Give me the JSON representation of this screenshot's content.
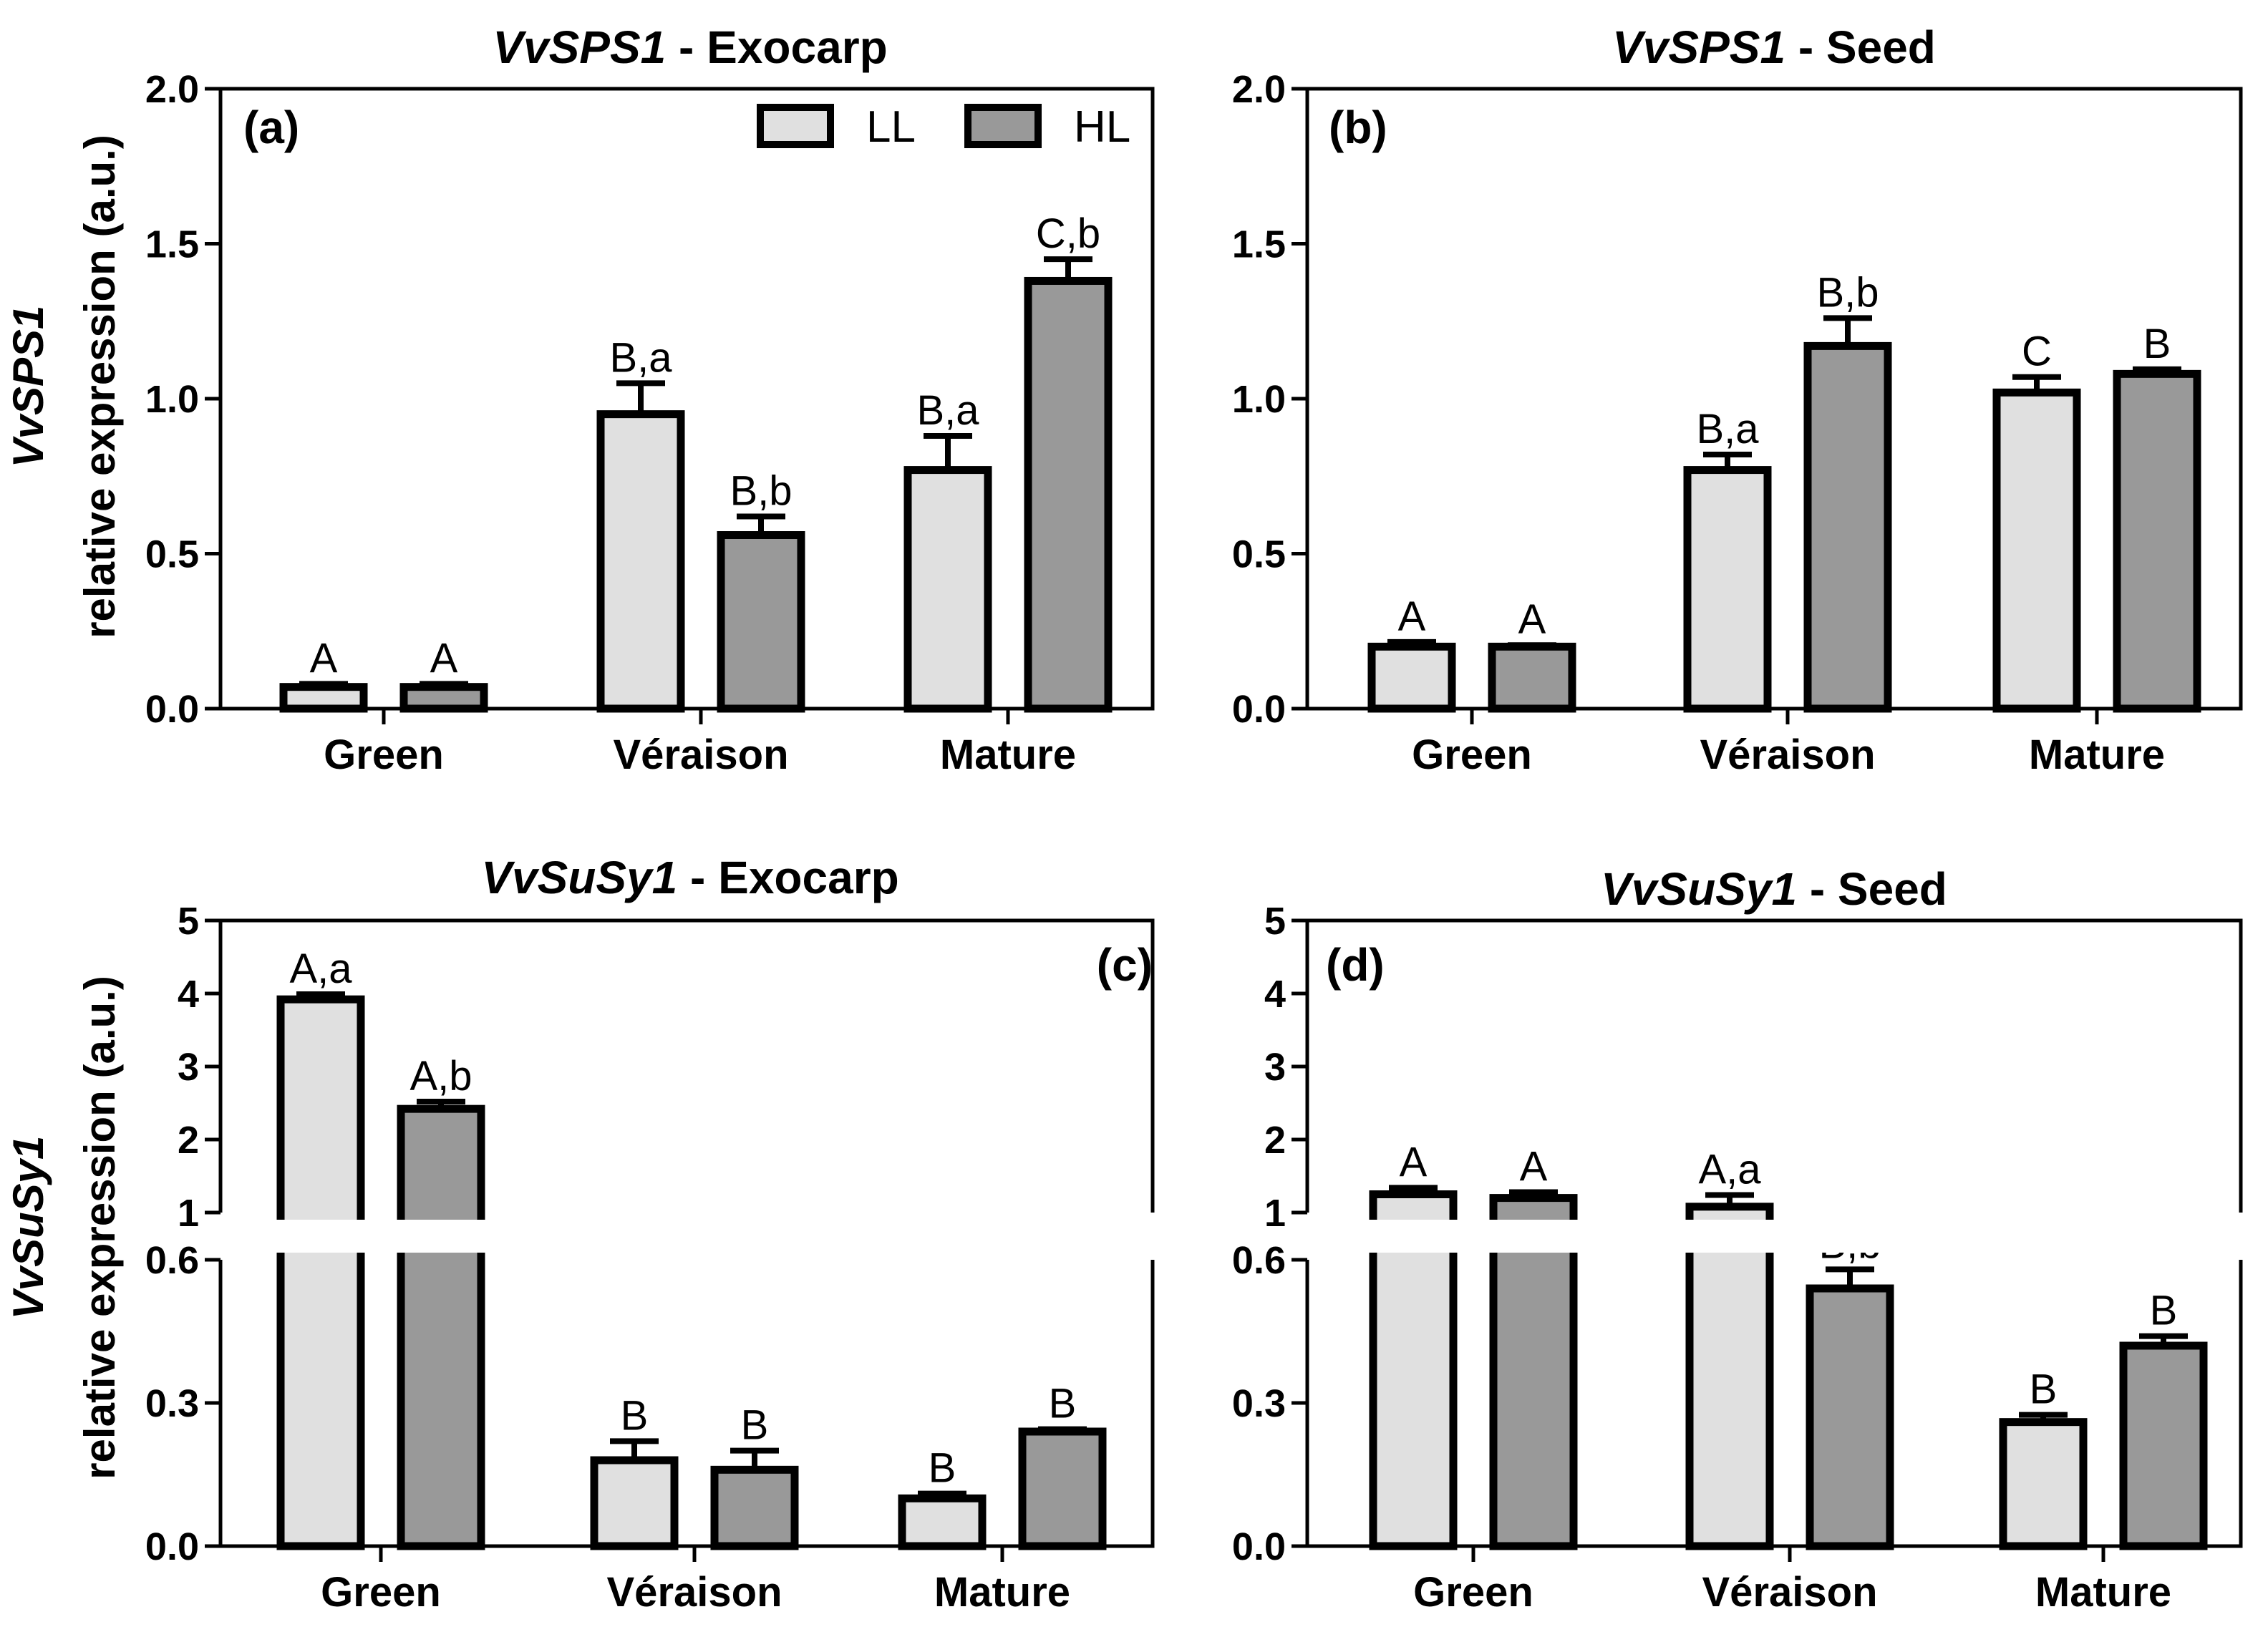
{
  "colors": {
    "LL": "#e0e0e0",
    "HL": "#999999",
    "stroke": "#000000"
  },
  "legend": {
    "LL": "LL",
    "HL": "HL"
  },
  "ylabels": {
    "top": {
      "gene": "VvSPS1",
      "text": "relative expression (a.u.)"
    },
    "bottom": {
      "gene": "VvSuSy1",
      "text": "relative expression (a.u.)"
    }
  },
  "chart_data": [
    {
      "type": "bar",
      "panel": "(a)",
      "title_gene": "VvSPS1",
      "title_sep": " - ",
      "title_tissue": "Exocarp",
      "categories": [
        "Green",
        "Véraison",
        "Mature"
      ],
      "ylim": [
        0,
        2.0
      ],
      "yticks": [
        "0.0",
        "0.5",
        "1.0",
        "1.5",
        "2.0"
      ],
      "series": [
        {
          "name": "LL",
          "values": [
            0.07,
            0.95,
            0.77
          ],
          "errors": [
            0.01,
            0.1,
            0.11
          ],
          "labels": [
            "A",
            "B,a",
            "B,a"
          ]
        },
        {
          "name": "HL",
          "values": [
            0.07,
            0.56,
            1.38
          ],
          "errors": [
            0.01,
            0.06,
            0.07
          ],
          "labels": [
            "A",
            "B,b",
            "C,b"
          ]
        }
      ]
    },
    {
      "type": "bar",
      "panel": "(b)",
      "title_gene": "VvSPS1",
      "title_sep": " - ",
      "title_tissue": "Seed",
      "categories": [
        "Green",
        "Véraison",
        "Mature"
      ],
      "ylim": [
        0,
        2.0
      ],
      "yticks": [
        "0.0",
        "0.5",
        "1.0",
        "1.5",
        "2.0"
      ],
      "series": [
        {
          "name": "LL",
          "values": [
            0.2,
            0.77,
            1.02
          ],
          "errors": [
            0.015,
            0.05,
            0.05
          ],
          "labels": [
            "A",
            "B,a",
            "C"
          ]
        },
        {
          "name": "HL",
          "values": [
            0.2,
            1.17,
            1.08
          ],
          "errors": [
            0.005,
            0.09,
            0.015
          ],
          "labels": [
            "A",
            "B,b",
            "B"
          ]
        }
      ]
    },
    {
      "type": "bar",
      "panel": "(c)",
      "title_gene": "VvSuSy1",
      "title_sep": " - ",
      "title_tissue": "Exocarp",
      "categories": [
        "Green",
        "Véraison",
        "Mature"
      ],
      "axis_break": {
        "lower": [
          0,
          0.6
        ],
        "upper": [
          1,
          5
        ]
      },
      "yticks_lower": [
        "0.0",
        "0.3",
        "0.6"
      ],
      "yticks_upper": [
        "1",
        "2",
        "3",
        "4",
        "5"
      ],
      "series": [
        {
          "name": "LL",
          "values": [
            3.92,
            0.18,
            0.1
          ],
          "errors": [
            0.07,
            0.04,
            0.01
          ],
          "labels": [
            "A,a",
            "B",
            "B"
          ]
        },
        {
          "name": "HL",
          "values": [
            2.42,
            0.16,
            0.24
          ],
          "errors": [
            0.1,
            0.04,
            0.005
          ],
          "labels": [
            "A,b",
            "B",
            "B"
          ]
        }
      ]
    },
    {
      "type": "bar",
      "panel": "(d)",
      "title_gene": "VvSuSy1",
      "title_sep": " - ",
      "title_tissue": "Seed",
      "categories": [
        "Green",
        "Véraison",
        "Mature"
      ],
      "axis_break": {
        "lower": [
          0,
          0.6
        ],
        "upper": [
          1,
          5
        ]
      },
      "yticks_lower": [
        "0.0",
        "0.3",
        "0.6"
      ],
      "yticks_upper": [
        "1",
        "2",
        "3",
        "4",
        "5"
      ],
      "series": [
        {
          "name": "LL",
          "values": [
            1.25,
            1.08,
            0.26
          ],
          "errors": [
            0.09,
            0.16,
            0.015
          ],
          "labels": [
            "A",
            "A,a",
            "B"
          ]
        },
        {
          "name": "HL",
          "values": [
            1.2,
            0.54,
            0.42
          ],
          "errors": [
            0.08,
            0.04,
            0.02
          ],
          "labels": [
            "A",
            "B,b",
            "B"
          ]
        }
      ]
    }
  ]
}
